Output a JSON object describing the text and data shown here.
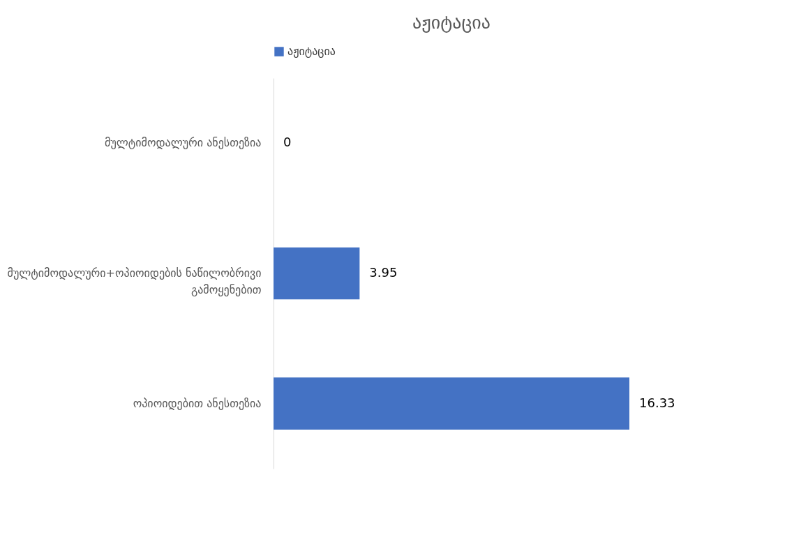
{
  "chart_data": {
    "type": "bar",
    "orientation": "horizontal",
    "title": "აჟიტაცია",
    "categories": [
      "მულტიმოდალური ანესთეზია",
      "მულტიმოდალური+ოპიოიდების ნაწილობრივი გამოყენებით",
      "ოპიოიდებით ანესთეზია"
    ],
    "series": [
      {
        "name": "აჟიტაცია",
        "color": "#4472c4",
        "values": [
          0,
          3.95,
          16.33
        ]
      }
    ],
    "data_labels": true,
    "legend": "top",
    "grid": false
  }
}
